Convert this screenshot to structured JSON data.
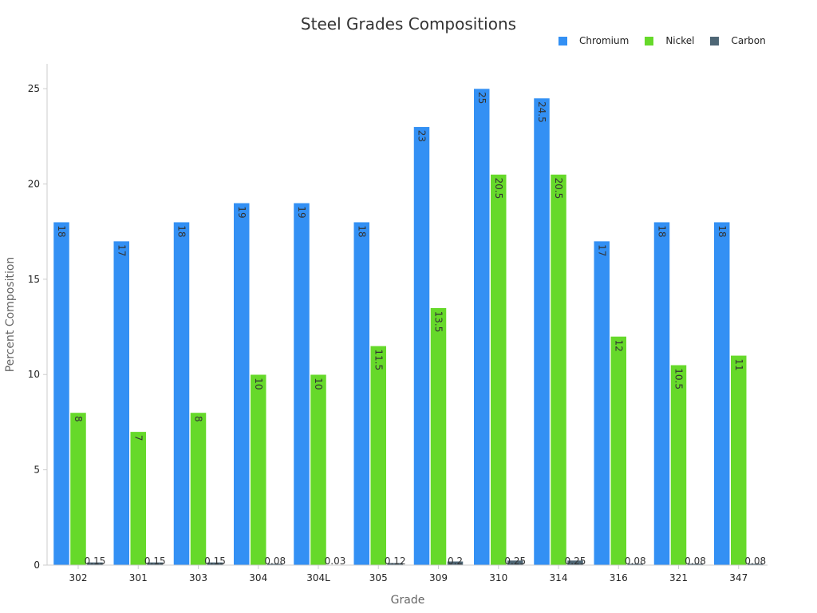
{
  "chart_data": {
    "type": "bar",
    "title": "Steel Grades Compositions",
    "xlabel": "Grade",
    "ylabel": "Percent Composition",
    "ylim": [
      0,
      26.3
    ],
    "yticks": [
      0,
      5,
      10,
      15,
      20,
      25
    ],
    "grid": false,
    "legend_position": "top-right",
    "categories": [
      "302",
      "301",
      "303",
      "304",
      "304L",
      "305",
      "309",
      "310",
      "314",
      "316",
      "321",
      "347"
    ],
    "series": [
      {
        "name": "Chromium",
        "color": "#3390f4",
        "values": [
          18,
          17,
          18,
          19,
          19,
          18,
          23,
          25,
          24.5,
          17,
          18,
          18
        ]
      },
      {
        "name": "Nickel",
        "color": "#66d92a",
        "values": [
          8,
          7,
          8,
          10,
          10,
          11.5,
          13.5,
          20.5,
          20.5,
          12,
          10.5,
          11
        ]
      },
      {
        "name": "Carbon",
        "color": "#4e6675",
        "values": [
          0.15,
          0.15,
          0.15,
          0.08,
          0.03,
          0.12,
          0.2,
          0.25,
          0.25,
          0.08,
          0.08,
          0.08
        ]
      }
    ]
  }
}
